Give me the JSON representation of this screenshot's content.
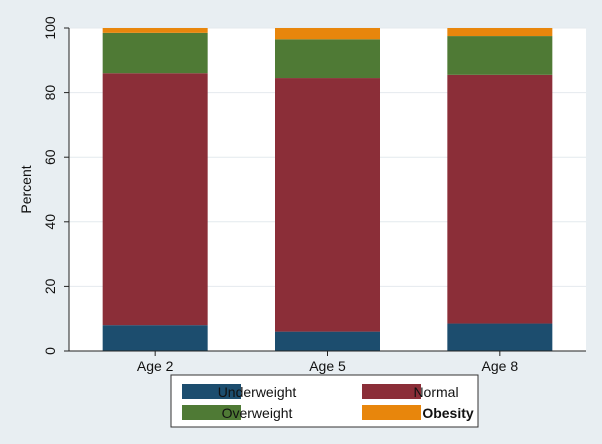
{
  "chart_data": {
    "type": "bar",
    "stacked": true,
    "categories": [
      "Age 2",
      "Age 5",
      "Age 8"
    ],
    "series": [
      {
        "name": "Underweight",
        "color": "#1c4d6e",
        "values": [
          8,
          6,
          8.5
        ]
      },
      {
        "name": "Normal",
        "color": "#8b2e38",
        "values": [
          78,
          78.5,
          77
        ]
      },
      {
        "name": "Overweight",
        "color": "#4f7a35",
        "values": [
          12.5,
          12,
          12
        ]
      },
      {
        "name": "Obesity",
        "color": "#e8860c",
        "values": [
          1.5,
          3.5,
          2.5
        ]
      }
    ],
    "title": "",
    "xlabel": "",
    "ylabel": "Percent",
    "ylim": [
      0,
      100
    ],
    "yticks": [
      0,
      20,
      40,
      60,
      80,
      100
    ],
    "grid": true,
    "legend_position": "bottom"
  }
}
